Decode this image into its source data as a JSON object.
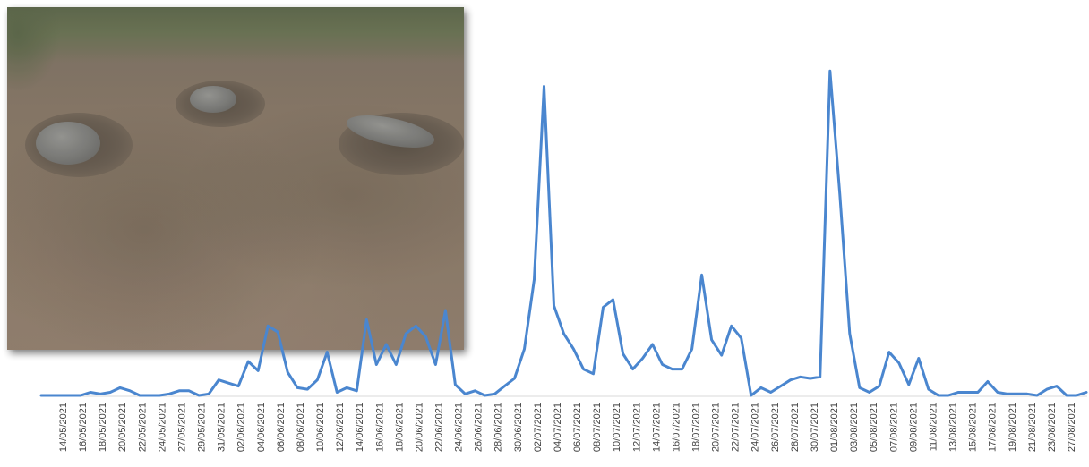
{
  "chart_data": {
    "type": "line",
    "title": "",
    "xlabel": "",
    "ylabel": "",
    "grid": false,
    "series_color": "#4a86cf",
    "x_tick_labels": [
      "14/05/2021",
      "16/05/2021",
      "18/05/2021",
      "20/05/2021",
      "22/05/2021",
      "24/05/2021",
      "27/05/2021",
      "29/05/2021",
      "31/05/2021",
      "02/06/2021",
      "04/06/2021",
      "06/06/2021",
      "08/06/2021",
      "10/06/2021",
      "12/06/2021",
      "14/06/2021",
      "16/06/2021",
      "18/06/2021",
      "20/06/2021",
      "22/06/2021",
      "24/06/2021",
      "26/06/2021",
      "28/06/2021",
      "30/06/2021",
      "02/07/2021",
      "04/07/2021",
      "06/07/2021",
      "08/07/2021",
      "10/07/2021",
      "12/07/2021",
      "14/07/2021",
      "16/07/2021",
      "18/07/2021",
      "20/07/2021",
      "22/07/2021",
      "24/07/2021",
      "26/07/2021",
      "28/07/2021",
      "30/07/2021",
      "01/08/2021",
      "03/08/2021",
      "05/08/2021",
      "07/08/2021",
      "09/08/2021",
      "11/08/2021",
      "13/08/2021",
      "15/08/2021",
      "17/08/2021",
      "19/08/2021",
      "21/08/2021",
      "23/08/2021",
      "27/08/2021"
    ],
    "values": [
      0,
      0,
      0,
      0,
      0,
      2,
      1,
      2,
      5,
      3,
      0,
      0,
      0,
      1,
      3,
      3,
      0,
      1,
      10,
      8,
      6,
      22,
      16,
      45,
      41,
      15,
      5,
      4,
      10,
      28,
      2,
      5,
      3,
      49,
      20,
      33,
      20,
      40,
      45,
      38,
      20,
      55,
      7,
      1,
      3,
      0,
      1,
      6,
      11,
      30,
      75,
      200,
      58,
      40,
      30,
      17,
      14,
      57,
      62,
      27,
      17,
      24,
      33,
      20,
      17,
      17,
      30,
      78,
      36,
      26,
      45,
      37,
      0,
      5,
      2,
      6,
      10,
      12,
      11,
      12,
      210,
      130,
      40,
      5,
      2,
      6,
      28,
      21,
      7,
      24,
      4,
      0,
      0,
      2,
      2,
      2,
      9,
      2,
      1,
      1,
      1,
      0,
      4,
      6,
      0,
      0,
      2
    ],
    "ylim": [
      0,
      220
    ]
  }
}
